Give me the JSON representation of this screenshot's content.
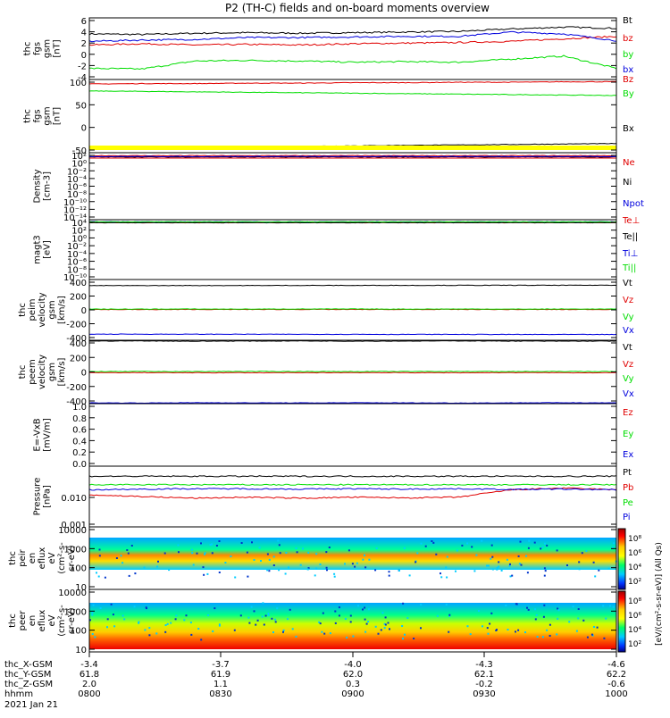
{
  "title": "P2 (TH-C) fields and on-board moments overview",
  "colors": {
    "black": "#000000",
    "red": "#e00000",
    "green": "#00dd00",
    "blue": "#0000dd",
    "yellow": "#ffff00"
  },
  "footer": {
    "row_labels": [
      "thc_X-GSM",
      "thc_Y-GSM",
      "thc_Z-GSM",
      "hhmm",
      "2021 Jan 21"
    ],
    "columns": [
      {
        "x": "-3.4",
        "y": "61.8",
        "z": "2.0",
        "t": "0800"
      },
      {
        "x": "-3.7",
        "y": "61.9",
        "z": "1.1",
        "t": "0830"
      },
      {
        "x": "-4.0",
        "y": "62.0",
        "z": "0.3",
        "t": "0900"
      },
      {
        "x": "-4.3",
        "y": "62.1",
        "z": "-0.2",
        "t": "0930"
      },
      {
        "x": "-4.6",
        "y": "62.2",
        "z": "-0.6",
        "t": "1000"
      }
    ]
  },
  "colorbar": {
    "ticks": [
      "10⁸",
      "10⁶",
      "10⁴",
      "10²"
    ],
    "ticks_lower": [
      "10⁸",
      "10⁶",
      "10⁴",
      "10²"
    ],
    "label": "[eV/(cm²-s-sr-eV)] (All Qs)"
  },
  "chart_data": [
    {
      "type": "line",
      "ylabel": [
        "thc",
        "fgs",
        "gsm",
        "[nT]"
      ],
      "yticks": [
        "6",
        "4",
        "2",
        "0",
        "-2",
        "-4"
      ],
      "ylim": [
        -4,
        6
      ],
      "series": [
        {
          "name": "Bt",
          "color": "#000000",
          "values": [
            3.4,
            3.3,
            3.5,
            3.6,
            3.5,
            3.6,
            3.7,
            3.8,
            4.2,
            4.5,
            4.3
          ]
        },
        {
          "name": "bz",
          "color": "#e00000",
          "values": [
            1.6,
            1.8,
            1.6,
            1.7,
            1.6,
            1.8,
            1.9,
            2.0,
            2.2,
            2.6,
            3.0
          ]
        },
        {
          "name": "by",
          "color": "#00dd00",
          "values": [
            -2.2,
            -2.3,
            -1.0,
            -0.9,
            -1.0,
            -1.2,
            -1.1,
            -1.2,
            -0.7,
            -0.2,
            -2.2
          ]
        },
        {
          "name": "bx",
          "color": "#0000dd",
          "values": [
            2.2,
            2.4,
            2.5,
            2.8,
            2.8,
            2.9,
            3.0,
            3.0,
            3.7,
            3.4,
            2.3
          ]
        }
      ]
    },
    {
      "type": "line",
      "ylabel": [
        "thc",
        "fgs",
        "gsm",
        "[nT]"
      ],
      "yticks": [
        "100",
        "50",
        "0",
        "-50"
      ],
      "ylim": [
        -60,
        100
      ],
      "series": [
        {
          "name": "Bz",
          "color": "#e00000",
          "values": [
            90,
            91,
            91,
            92,
            92,
            93,
            93,
            94,
            94,
            95,
            95
          ]
        },
        {
          "name": "By",
          "color": "#00dd00",
          "values": [
            75,
            74,
            73,
            72,
            71,
            70,
            69,
            68,
            67,
            66,
            65
          ]
        },
        {
          "name": "Bx",
          "color": "#000000",
          "values": [
            -50,
            -49,
            -48,
            -47,
            -46,
            -45,
            -44,
            -43,
            -42,
            -41,
            -40
          ]
        }
      ]
    },
    {
      "type": "line",
      "ylabel": [
        "Density",
        "[cm-3]"
      ],
      "yticks": [
        "10²",
        "10⁰",
        "10⁻²",
        "10⁻⁴",
        "10⁻⁶",
        "10⁻⁸",
        "10⁻¹⁰",
        "10⁻¹²",
        "10⁻¹⁴"
      ],
      "ylim": [
        -14,
        2
      ],
      "series": [
        {
          "name": "Ne",
          "color": "#e00000",
          "values": [
            1.3,
            1.3,
            1.3,
            1.3,
            1.3,
            1.3,
            1.3,
            1.3,
            1.3,
            1.3,
            1.3
          ]
        },
        {
          "name": "Ni",
          "color": "#000000",
          "values": [
            1.0,
            1.0,
            1.0,
            1.0,
            1.0,
            1.0,
            1.0,
            1.0,
            1.0,
            1.0,
            1.0
          ]
        },
        {
          "name": "Npot",
          "color": "#0000dd",
          "values": [
            1.1,
            1.1,
            1.1,
            1.1,
            1.1,
            1.1,
            1.1,
            1.1,
            1.1,
            1.1,
            1.1
          ]
        }
      ]
    },
    {
      "type": "line",
      "ylabel": [
        "magt3",
        "[eV]"
      ],
      "yticks": [
        "10⁴",
        "10²",
        "10⁰",
        "10⁻²",
        "10⁻⁴",
        "10⁻⁶",
        "10⁻⁸",
        "10⁻¹⁰"
      ],
      "ylim": [
        -10,
        4
      ],
      "series": [
        {
          "name": "Te⊥",
          "color": "#e00000",
          "values": [
            3.3,
            3.3,
            3.3,
            3.3,
            3.3,
            3.3,
            3.3,
            3.3,
            3.3,
            3.3,
            3.3
          ]
        },
        {
          "name": "Te||",
          "color": "#000000",
          "values": [
            3.3,
            3.3,
            3.3,
            3.3,
            3.3,
            3.3,
            3.3,
            3.3,
            3.3,
            3.3,
            3.3
          ]
        },
        {
          "name": "Ti⊥",
          "color": "#0000dd",
          "values": [
            3.5,
            3.5,
            3.5,
            3.5,
            3.5,
            3.5,
            3.5,
            3.5,
            3.5,
            3.5,
            3.5
          ]
        },
        {
          "name": "Ti||",
          "color": "#00dd00",
          "values": [
            3.5,
            3.5,
            3.5,
            3.5,
            3.5,
            3.5,
            3.5,
            3.5,
            3.5,
            3.5,
            3.5
          ]
        }
      ]
    },
    {
      "type": "line",
      "ylabel": [
        "thc",
        "peim",
        "velocity",
        "gsm",
        "[km/s]"
      ],
      "yticks": [
        "400",
        "200",
        "0",
        "-200",
        "-400"
      ],
      "ylim": [
        -400,
        400
      ],
      "series": [
        {
          "name": "Vt",
          "color": "#000000",
          "values": [
            320,
            320,
            321,
            321,
            322,
            322,
            323,
            323,
            324,
            324,
            325
          ]
        },
        {
          "name": "Vz",
          "color": "#e00000",
          "values": [
            5,
            4,
            5,
            5,
            6,
            5,
            5,
            6,
            5,
            5,
            6
          ]
        },
        {
          "name": "Vy",
          "color": "#00dd00",
          "values": [
            10,
            10,
            11,
            10,
            11,
            11,
            10,
            11,
            10,
            11,
            10
          ]
        },
        {
          "name": "Vx",
          "color": "#0000dd",
          "values": [
            -320,
            -320,
            -321,
            -321,
            -322,
            -322,
            -323,
            -323,
            -324,
            -324,
            -325
          ]
        }
      ]
    },
    {
      "type": "line",
      "ylabel": [
        "thc",
        "peem",
        "velocity",
        "gsm",
        "[km/s]"
      ],
      "yticks": [
        "400",
        "200",
        "0",
        "-200",
        "-400"
      ],
      "ylim": [
        -400,
        400
      ],
      "series": [
        {
          "name": "Vt",
          "color": "#000000",
          "values": [
            390,
            392,
            388,
            390,
            391,
            389,
            390,
            392,
            390,
            388,
            390
          ]
        },
        {
          "name": "Vz",
          "color": "#e00000",
          "values": [
            -10,
            -8,
            -10,
            -9,
            -10,
            -8,
            -9,
            -10,
            -8,
            -9,
            -10
          ]
        },
        {
          "name": "Vy",
          "color": "#00dd00",
          "values": [
            5,
            6,
            5,
            7,
            6,
            5,
            6,
            7,
            5,
            6,
            5
          ]
        },
        {
          "name": "Vx",
          "color": "#0000dd",
          "values": [
            -390,
            -392,
            -388,
            -390,
            -391,
            -389,
            -390,
            -392,
            -390,
            -388,
            -390
          ]
        }
      ]
    },
    {
      "type": "line",
      "ylabel": [
        "E=-VxB",
        "[mV/m]"
      ],
      "yticks": [
        "1.0",
        "0.8",
        "0.6",
        "0.4",
        "0.2",
        "0.0"
      ],
      "ylim": [
        0,
        1
      ],
      "series": [
        {
          "name": "Ez",
          "color": "#e00000",
          "values": []
        },
        {
          "name": "Ey",
          "color": "#00dd00",
          "values": []
        },
        {
          "name": "Ex",
          "color": "#0000dd",
          "values": []
        }
      ]
    },
    {
      "type": "line",
      "ylabel": [
        "Pressure",
        "[nPa]"
      ],
      "yticks": [
        "0.010",
        "0.001"
      ],
      "ylim": [
        -3.1,
        -1.3
      ],
      "series": [
        {
          "name": "Pt",
          "color": "#000000",
          "values": [
            -1.6,
            -1.6,
            -1.6,
            -1.6,
            -1.6,
            -1.6,
            -1.6,
            -1.6,
            -1.6,
            -1.6,
            -1.6
          ]
        },
        {
          "name": "Pb",
          "color": "#e00000",
          "values": [
            -2.15,
            -2.2,
            -2.25,
            -2.22,
            -2.25,
            -2.22,
            -2.24,
            -2.22,
            -2.0,
            -1.95,
            -2.0
          ]
        },
        {
          "name": "Pe",
          "color": "#00dd00",
          "values": [
            -1.85,
            -1.85,
            -1.85,
            -1.85,
            -1.85,
            -1.85,
            -1.85,
            -1.85,
            -1.85,
            -1.85,
            -1.85
          ]
        },
        {
          "name": "Pi",
          "color": "#0000dd",
          "values": [
            -2.0,
            -1.98,
            -1.97,
            -1.97,
            -1.98,
            -1.97,
            -1.98,
            -1.97,
            -1.99,
            -1.98,
            -2.0
          ]
        }
      ]
    },
    {
      "type": "heatmap",
      "ylabel": [
        "thc",
        "peir",
        "en",
        "eflux",
        "eV",
        "(cm²-s-",
        "sr-eV)"
      ],
      "yticks": [
        "10000",
        "1000",
        "100",
        "10"
      ],
      "ylim": [
        1,
        4.3
      ]
    },
    {
      "type": "heatmap",
      "ylabel": [
        "thc",
        "peer",
        "en",
        "eflux",
        "eV",
        "(cm²-s-",
        "sr-eV)"
      ],
      "yticks": [
        "10000",
        "1000",
        "100",
        "10"
      ],
      "ylim": [
        0.8,
        4.2
      ]
    }
  ]
}
